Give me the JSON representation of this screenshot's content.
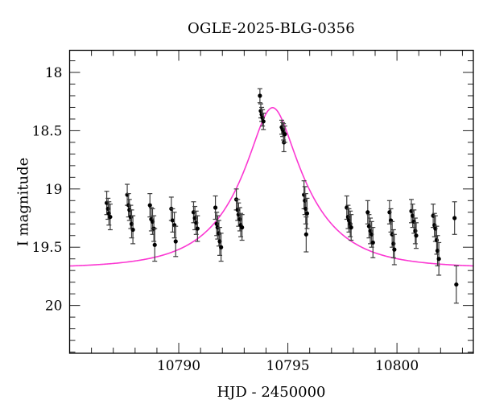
{
  "title": "OGLE-2025-BLG-0356",
  "colors": {
    "background": "#ffffff",
    "axis": "#000000",
    "tick": "#222222",
    "text": "#000000",
    "model_curve": "#fb38d2",
    "data_point": "#000000",
    "error_bar": "#3d3d3d"
  },
  "chart_data": {
    "type": "scatter",
    "title": "OGLE-2025-BLG-0356",
    "xlabel": "HJD - 2450000",
    "ylabel": "I magnitude",
    "xlim": [
      10785.0,
      10803.5
    ],
    "ylim": [
      17.81,
      20.41
    ],
    "y_inverted": true,
    "grid": false,
    "legend": "none",
    "x_major_ticks": [
      10790,
      10795,
      10800
    ],
    "x_tick_labels": [
      "10790",
      "10795",
      "10800"
    ],
    "x_minor_step": 1,
    "y_major_ticks": [
      18,
      18.5,
      19,
      19.5,
      20
    ],
    "y_tick_labels": [
      "18",
      "18.5",
      "19",
      "19.5",
      "20"
    ],
    "y_minor_step": 0.1,
    "model": {
      "name": "paczynski-microlensing-fit",
      "t0": 10794.3,
      "tE": 3.15,
      "u0": 0.29,
      "baseline_mag": 19.68,
      "peak_mag": 18.3
    },
    "points": [
      [
        10786.7,
        19.12,
        0.1
      ],
      [
        10786.76,
        19.17,
        0.09
      ],
      [
        10786.8,
        19.21,
        0.1
      ],
      [
        10786.86,
        19.24,
        0.11
      ],
      [
        10787.64,
        19.05,
        0.09
      ],
      [
        10787.7,
        19.14,
        0.1
      ],
      [
        10787.74,
        19.18,
        0.09
      ],
      [
        10787.8,
        19.24,
        0.1
      ],
      [
        10787.84,
        19.3,
        0.12
      ],
      [
        10787.9,
        19.35,
        0.12
      ],
      [
        10788.68,
        19.14,
        0.1
      ],
      [
        10788.74,
        19.26,
        0.1
      ],
      [
        10788.8,
        19.28,
        0.11
      ],
      [
        10788.86,
        19.34,
        0.11
      ],
      [
        10788.9,
        19.48,
        0.14
      ],
      [
        10789.66,
        19.17,
        0.1
      ],
      [
        10789.72,
        19.27,
        0.1
      ],
      [
        10789.8,
        19.31,
        0.11
      ],
      [
        10789.86,
        19.45,
        0.13
      ],
      [
        10790.68,
        19.2,
        0.09
      ],
      [
        10790.74,
        19.25,
        0.1
      ],
      [
        10790.8,
        19.29,
        0.1
      ],
      [
        10790.86,
        19.34,
        0.11
      ],
      [
        10791.68,
        19.16,
        0.1
      ],
      [
        10791.74,
        19.3,
        0.1
      ],
      [
        10791.78,
        19.33,
        0.1
      ],
      [
        10791.84,
        19.38,
        0.11
      ],
      [
        10791.88,
        19.45,
        0.12
      ],
      [
        10791.94,
        19.5,
        0.12
      ],
      [
        10792.64,
        19.09,
        0.09
      ],
      [
        10792.7,
        19.18,
        0.09
      ],
      [
        10792.74,
        19.22,
        0.1
      ],
      [
        10792.8,
        19.26,
        0.1
      ],
      [
        10792.84,
        19.31,
        0.1
      ],
      [
        10792.9,
        19.33,
        0.11
      ],
      [
        10793.72,
        18.2,
        0.06
      ],
      [
        10793.76,
        18.33,
        0.06
      ],
      [
        10793.8,
        18.36,
        0.06
      ],
      [
        10793.84,
        18.39,
        0.07
      ],
      [
        10793.88,
        18.42,
        0.07
      ],
      [
        10794.72,
        18.47,
        0.06
      ],
      [
        10794.76,
        18.49,
        0.06
      ],
      [
        10794.8,
        18.51,
        0.07
      ],
      [
        10794.82,
        18.6,
        0.08
      ],
      [
        10794.86,
        18.53,
        0.07
      ],
      [
        10795.74,
        19.05,
        0.12
      ],
      [
        10795.78,
        19.1,
        0.12
      ],
      [
        10795.82,
        19.17,
        0.13
      ],
      [
        10795.84,
        19.39,
        0.15
      ],
      [
        10795.88,
        19.21,
        0.13
      ],
      [
        10797.7,
        19.16,
        0.1
      ],
      [
        10797.76,
        19.24,
        0.1
      ],
      [
        10797.8,
        19.27,
        0.1
      ],
      [
        10797.86,
        19.3,
        0.11
      ],
      [
        10797.9,
        19.33,
        0.11
      ],
      [
        10798.66,
        19.2,
        0.1
      ],
      [
        10798.72,
        19.32,
        0.1
      ],
      [
        10798.78,
        19.36,
        0.11
      ],
      [
        10798.84,
        19.39,
        0.11
      ],
      [
        10798.9,
        19.46,
        0.13
      ],
      [
        10799.66,
        19.2,
        0.1
      ],
      [
        10799.72,
        19.27,
        0.1
      ],
      [
        10799.78,
        19.39,
        0.11
      ],
      [
        10799.84,
        19.47,
        0.12
      ],
      [
        10799.88,
        19.52,
        0.13
      ],
      [
        10800.66,
        19.19,
        0.1
      ],
      [
        10800.72,
        19.23,
        0.1
      ],
      [
        10800.78,
        19.28,
        0.1
      ],
      [
        10800.84,
        19.36,
        0.11
      ],
      [
        10800.88,
        19.4,
        0.11
      ],
      [
        10801.66,
        19.23,
        0.1
      ],
      [
        10801.72,
        19.31,
        0.1
      ],
      [
        10801.76,
        19.34,
        0.11
      ],
      [
        10801.82,
        19.44,
        0.12
      ],
      [
        10801.86,
        19.53,
        0.13
      ],
      [
        10801.92,
        19.6,
        0.14
      ],
      [
        10802.64,
        19.25,
        0.14
      ],
      [
        10802.72,
        19.82,
        0.16
      ]
    ]
  }
}
